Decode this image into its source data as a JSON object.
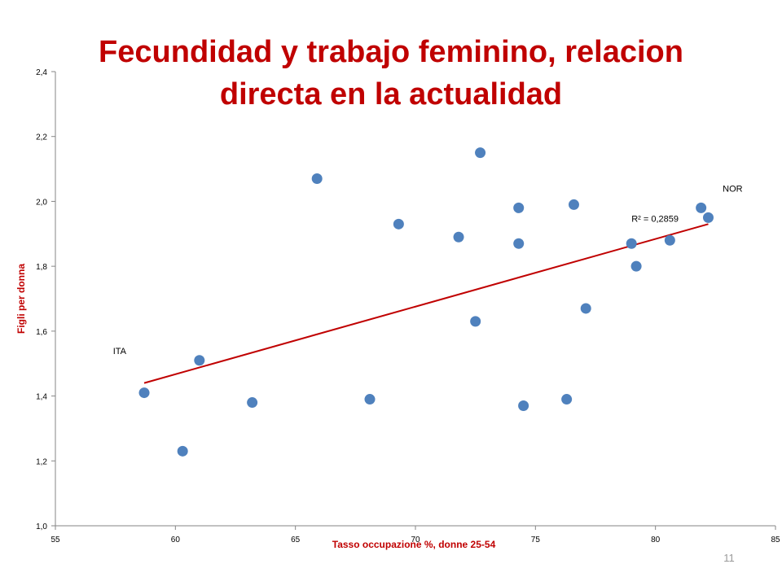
{
  "slide": {
    "title_line1": "Fecundidad y trabajo feminino, relacion",
    "title_line2": "directa en la actualidad",
    "page_number": "11"
  },
  "colors": {
    "title": "#c00000",
    "points": "#4f81bd",
    "trendline": "#c00000",
    "axis": "#000000"
  },
  "chart_data": {
    "type": "scatter",
    "xlabel": "Tasso occupazione %, donne 25-54",
    "ylabel": "Figli per donna",
    "xlim": [
      55,
      85
    ],
    "ylim": [
      1.0,
      2.4
    ],
    "xticks": [
      "55",
      "60",
      "65",
      "70",
      "75",
      "80",
      "85"
    ],
    "yticks": [
      "1,0",
      "1,2",
      "1,4",
      "1,6",
      "1,8",
      "2,0",
      "2,2",
      "2,4"
    ],
    "grid": false,
    "legend": "none",
    "points": [
      {
        "x": 58.7,
        "y": 1.41
      },
      {
        "x": 60.3,
        "y": 1.23
      },
      {
        "x": 61.0,
        "y": 1.51
      },
      {
        "x": 63.2,
        "y": 1.38
      },
      {
        "x": 65.9,
        "y": 2.07
      },
      {
        "x": 68.1,
        "y": 1.39
      },
      {
        "x": 69.3,
        "y": 1.93
      },
      {
        "x": 71.8,
        "y": 1.89
      },
      {
        "x": 72.5,
        "y": 1.63
      },
      {
        "x": 72.7,
        "y": 2.15
      },
      {
        "x": 74.3,
        "y": 1.98
      },
      {
        "x": 74.3,
        "y": 1.87
      },
      {
        "x": 74.5,
        "y": 1.37
      },
      {
        "x": 76.3,
        "y": 1.39
      },
      {
        "x": 76.6,
        "y": 1.99
      },
      {
        "x": 77.1,
        "y": 1.67
      },
      {
        "x": 79.0,
        "y": 1.87
      },
      {
        "x": 79.2,
        "y": 1.8
      },
      {
        "x": 80.6,
        "y": 1.88
      },
      {
        "x": 81.9,
        "y": 1.98
      },
      {
        "x": 82.2,
        "y": 1.95
      }
    ],
    "trendline": {
      "x": [
        58.7,
        82.2
      ],
      "y": [
        1.44,
        1.93
      ]
    },
    "r_squared_label": "R² = 0,2859",
    "annotations": [
      {
        "text": "ITA",
        "x": 57.4,
        "y": 1.53
      },
      {
        "text": "NOR",
        "x": 82.8,
        "y": 2.03
      }
    ]
  }
}
